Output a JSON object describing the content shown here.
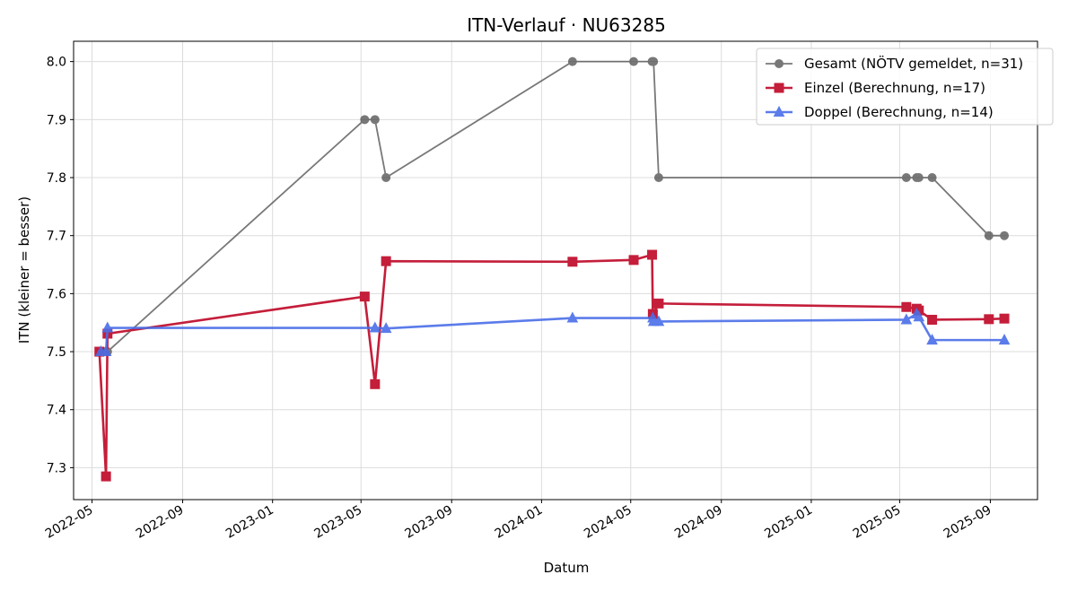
{
  "chart_data": {
    "type": "line",
    "title": "ITN-Verlauf · NU63285",
    "xlabel": "Datum",
    "ylabel": "ITN  (kleiner = besser)",
    "xlim": [
      "2022-04-06",
      "2025-11-04"
    ],
    "ylim": [
      7.245,
      8.035
    ],
    "yticks": [
      7.3,
      7.4,
      7.5,
      7.6,
      7.7,
      7.8,
      7.9,
      8.0
    ],
    "ytick_labels": [
      "7.3",
      "7.4",
      "7.5",
      "7.6",
      "7.7",
      "7.8",
      "7.9",
      "8.0"
    ],
    "xticks": [
      "2022-05-01",
      "2022-09-01",
      "2023-01-01",
      "2023-05-01",
      "2023-09-01",
      "2024-01-01",
      "2024-05-01",
      "2024-09-01",
      "2025-01-01",
      "2025-05-01",
      "2025-09-01"
    ],
    "xtick_labels": [
      "2022-05",
      "2022-09",
      "2023-01",
      "2023-05",
      "2023-09",
      "2024-01",
      "2024-05",
      "2024-09",
      "2025-01",
      "2025-05",
      "2025-09"
    ],
    "grid": true,
    "legend": "top-right",
    "series": [
      {
        "name": "Gesamt (NÖTV gemeldet, n=31)",
        "color": "#3f3f3f",
        "marker": "circle",
        "x": [
          "2022-05-11",
          "2022-05-13",
          "2022-05-20",
          "2022-05-22",
          "2023-05-06",
          "2023-05-20",
          "2023-06-04",
          "2024-02-12",
          "2024-05-05",
          "2024-05-30",
          "2024-05-31",
          "2024-06-01",
          "2024-06-08",
          "2025-05-10",
          "2025-05-24",
          "2025-05-27",
          "2025-06-14",
          "2025-08-30",
          "2025-09-20"
        ],
        "y": [
          7.5,
          7.5,
          7.5,
          7.5,
          7.9,
          7.9,
          7.8,
          8.0,
          8.0,
          8.0,
          8.0,
          8.0,
          7.8,
          7.8,
          7.8,
          7.8,
          7.8,
          7.7,
          7.7
        ]
      },
      {
        "name": "Einzel (Berechnung, n=17)",
        "color": "#c41e3a",
        "marker": "square",
        "x": [
          "2022-05-11",
          "2022-05-20",
          "2022-05-22",
          "2023-05-06",
          "2023-05-20",
          "2023-06-04",
          "2024-02-12",
          "2024-05-05",
          "2024-05-30",
          "2024-05-31",
          "2024-06-08",
          "2025-05-10",
          "2025-05-24",
          "2025-05-27",
          "2025-06-14",
          "2025-08-30",
          "2025-09-20"
        ],
        "y": [
          7.5,
          7.285,
          7.531,
          7.595,
          7.444,
          7.656,
          7.655,
          7.658,
          7.667,
          7.565,
          7.583,
          7.577,
          7.574,
          7.571,
          7.555,
          7.556,
          7.557
        ]
      },
      {
        "name": "Doppel (Berechnung, n=14)",
        "color": "#4a6ee8",
        "marker": "triangle",
        "x": [
          "2022-05-13",
          "2022-05-20",
          "2022-05-22",
          "2023-05-20",
          "2023-06-04",
          "2024-02-12",
          "2024-05-31",
          "2024-06-01",
          "2024-06-08",
          "2025-05-10",
          "2025-05-24",
          "2025-05-27",
          "2025-06-14",
          "2025-09-20"
        ],
        "y": [
          7.5,
          7.5,
          7.541,
          7.541,
          7.54,
          7.558,
          7.558,
          7.552,
          7.552,
          7.555,
          7.565,
          7.56,
          7.52,
          7.52
        ]
      }
    ]
  }
}
